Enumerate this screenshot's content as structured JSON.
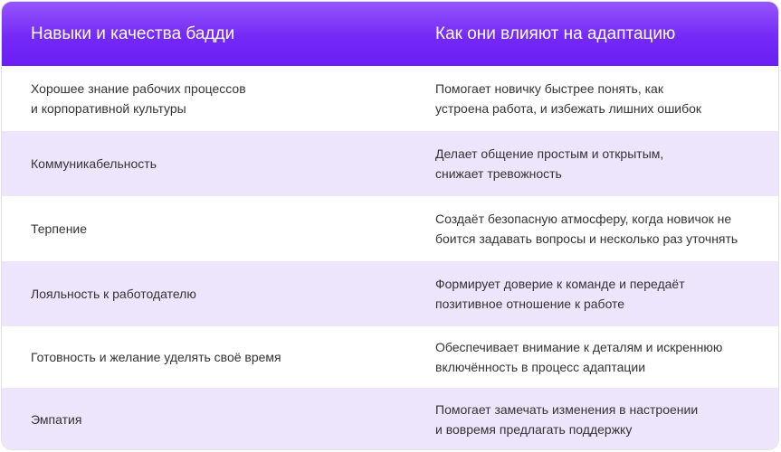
{
  "header": {
    "col1": "Навыки и качества бадди",
    "col2": "Как они влияют на адаптацию"
  },
  "colors": {
    "header_top": "#9656fb",
    "header_bottom": "#6a1ff4",
    "alt_row": "#ede5fc"
  },
  "rows": [
    {
      "skill": [
        "Хорошее знание рабочих процессов",
        "и корпоративной культуры"
      ],
      "effect": [
        "Помогает новичку быстрее понять, как",
        "устроена работа, и избежать лишних ошибок"
      ]
    },
    {
      "skill": [
        "Коммуникабельность"
      ],
      "effect": [
        "Делает общение простым и открытым,",
        "снижает тревожность"
      ]
    },
    {
      "skill": [
        "Терпение"
      ],
      "effect": [
        "Создаёт безопасную атмосферу, когда новичок не",
        "боится задавать вопросы и несколько раз уточнять"
      ]
    },
    {
      "skill": [
        "Лояльность к работодателю"
      ],
      "effect": [
        "Формирует доверие к команде и передаёт",
        "позитивное отношение к работе"
      ]
    },
    {
      "skill": [
        "Готовность и желание уделять своё время"
      ],
      "effect": [
        "Обеспечивает внимание к деталям и искреннюю",
        "включённость в процесс адаптации"
      ]
    },
    {
      "skill": [
        "Эмпатия"
      ],
      "effect": [
        "Помогает замечать изменения в настроении",
        "и вовремя предлагать поддержку"
      ]
    }
  ]
}
